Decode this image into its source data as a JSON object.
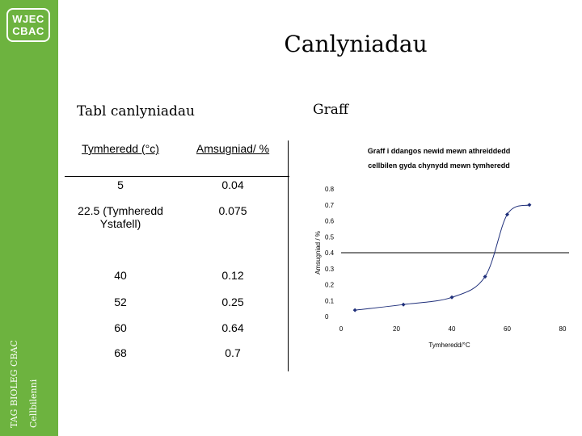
{
  "branding": {
    "logo_line1": "WJEC",
    "logo_line2": "CBAC",
    "side_line1": "TAG BIOLEG CBAC",
    "side_line2": "Cellbilenni"
  },
  "slide": {
    "title": "Canlyniadau",
    "table_heading": "Tabl canlyniadau",
    "graph_heading": "Graff"
  },
  "table": {
    "headers": [
      "Tymheredd (°c)",
      "Amsugniad/ %"
    ],
    "rows": [
      [
        "5",
        "0.04"
      ],
      [
        "22.5 (Tymheredd Ystafell)",
        "0.075"
      ],
      [
        "40",
        "0.12"
      ],
      [
        "52",
        "0.25"
      ],
      [
        "60",
        "0.64"
      ],
      [
        "68",
        "0.7"
      ]
    ]
  },
  "chart_data": {
    "type": "scatter",
    "title": "Graff i ddangos newid mewn athreiddedd cellbilen gyda chynydd mewn tymheredd",
    "xlabel": "Tymheredd/°C",
    "ylabel": "Amsugniad / %",
    "xlim": [
      0,
      80
    ],
    "ylim": [
      0,
      0.8
    ],
    "x_ticks": [
      "0",
      "20",
      "40",
      "60",
      "80"
    ],
    "y_ticks": [
      "0",
      "0.1",
      "0.2",
      "0.3",
      "0.4",
      "0.5",
      "0.6",
      "0.7",
      "0.8"
    ],
    "reference_line_y": 0.4,
    "smoothed_line": true,
    "series": [
      {
        "x": [
          5,
          22.5,
          40,
          52,
          60,
          68
        ],
        "y": [
          0.04,
          0.075,
          0.12,
          0.25,
          0.64,
          0.7
        ]
      }
    ],
    "marker_color": "#1f2f7a"
  }
}
